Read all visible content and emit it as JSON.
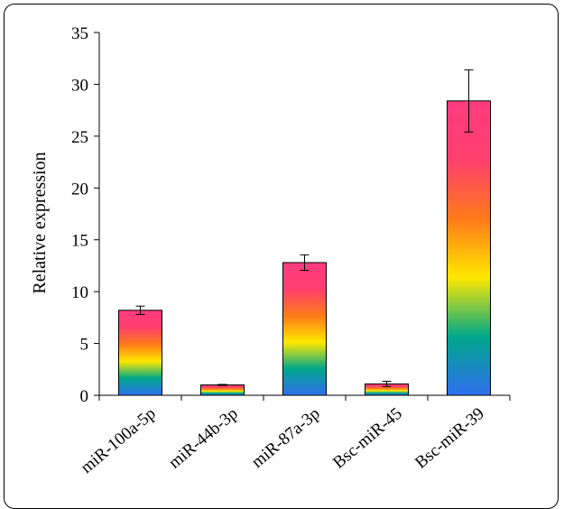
{
  "chart_data": {
    "type": "bar",
    "title": "",
    "xlabel": "",
    "ylabel": "Relative expression",
    "ylim": [
      0,
      35
    ],
    "yticks": [
      0,
      5,
      10,
      15,
      20,
      25,
      30,
      35
    ],
    "grid": false,
    "categories": [
      "miR-100a-5p",
      "miR-44b-3p",
      "miR-87a-3p",
      "Bsc-miR-45",
      "Bsc-miR-39"
    ],
    "values": [
      8.2,
      1.0,
      12.8,
      1.1,
      28.4
    ],
    "errors": [
      0.4,
      0.05,
      0.75,
      0.25,
      3.0
    ],
    "bar_gradient": [
      "#2f6ff0",
      "#00a88a",
      "#ffe800",
      "#ff7a1a",
      "#ff3f6e",
      "#ff3b80"
    ]
  }
}
